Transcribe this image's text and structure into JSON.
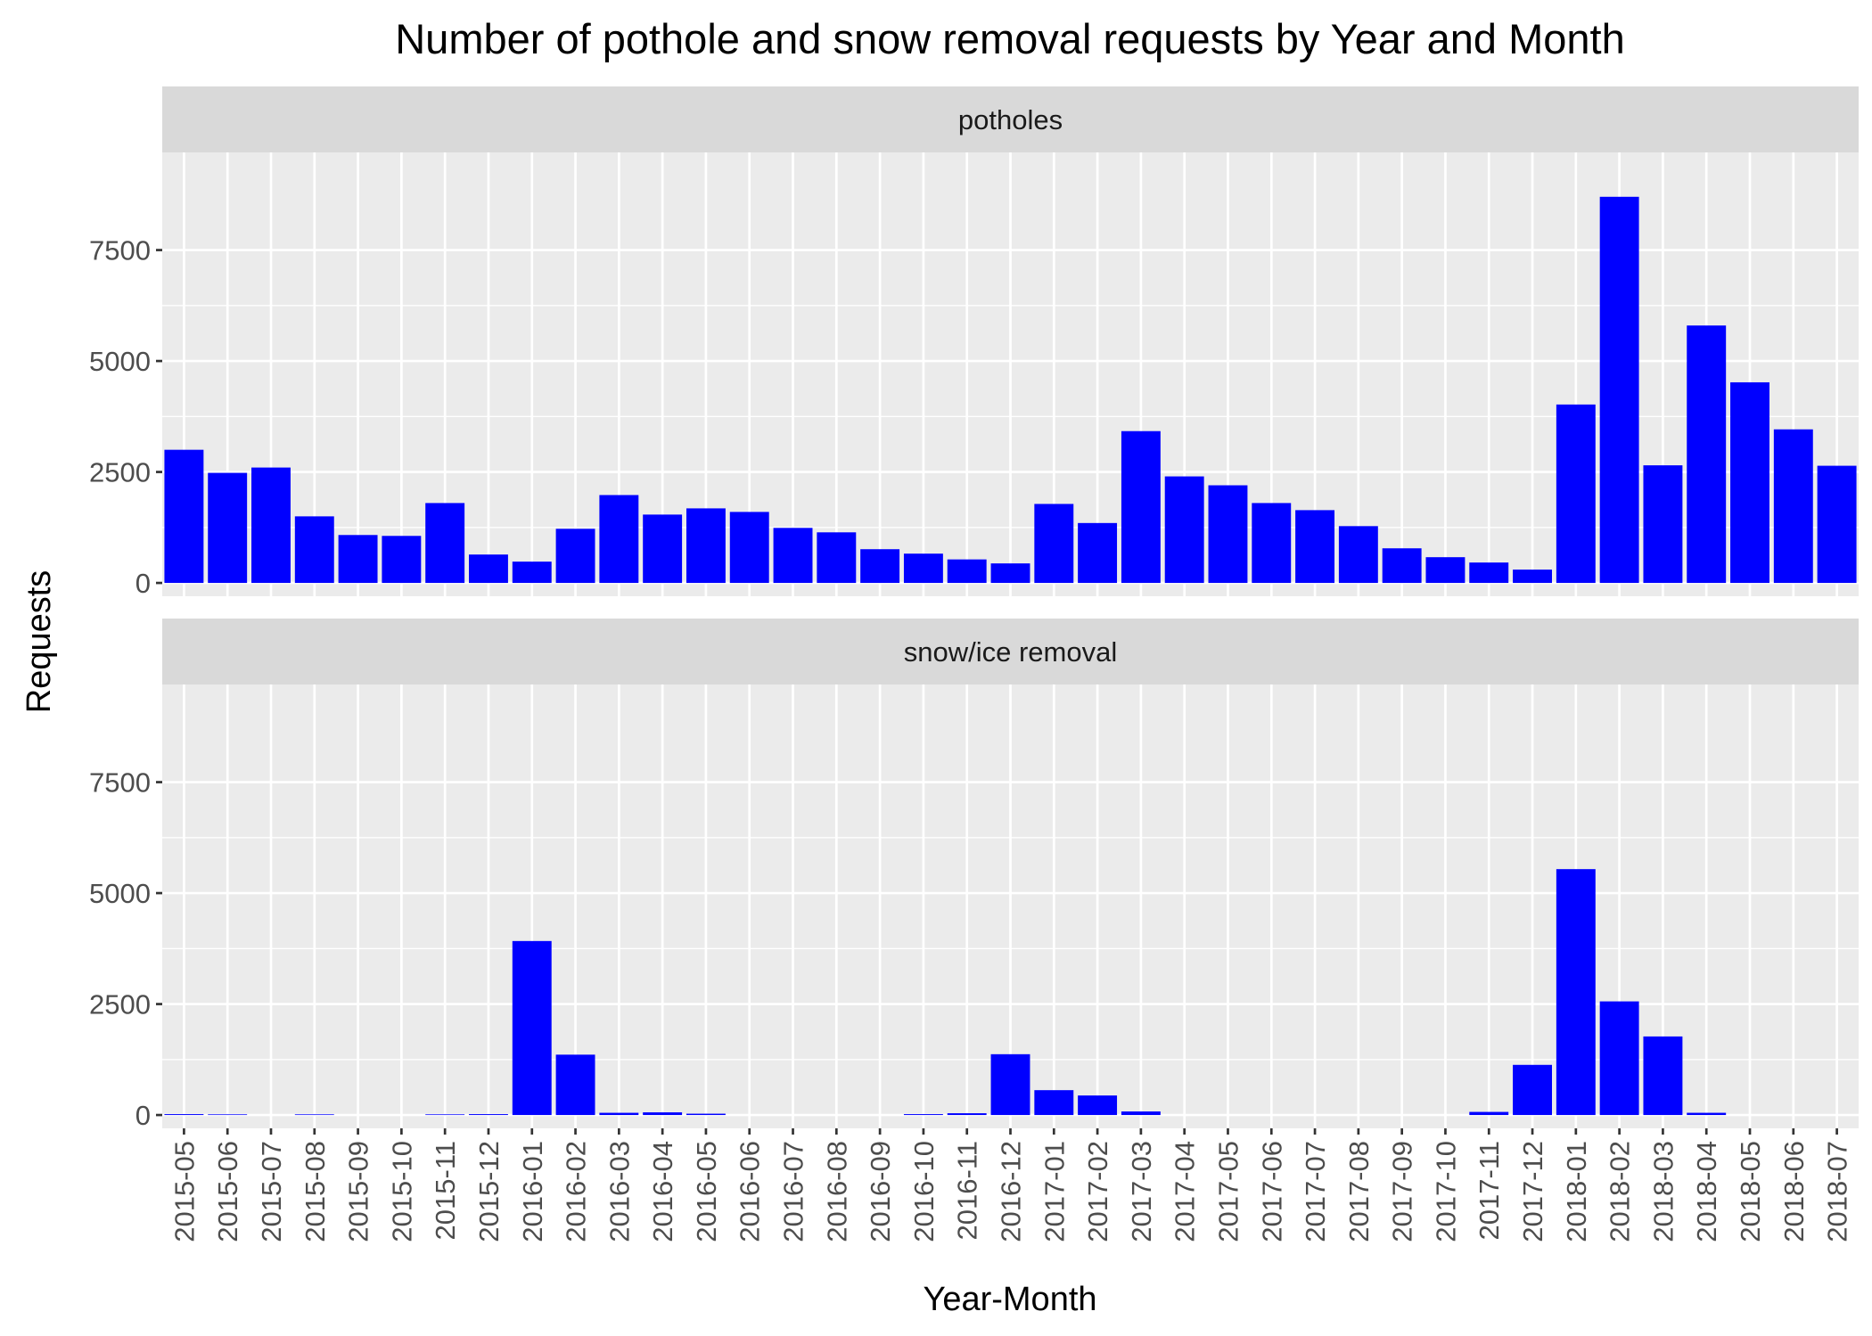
{
  "chart_data": {
    "type": "bar",
    "title": "Number of pothole and snow removal requests by Year and Month",
    "xlabel": "Year-Month",
    "ylabel": "Requests",
    "ylim": [
      -300,
      9700
    ],
    "yticks": [
      0,
      2500,
      5000,
      7500
    ],
    "yticks_labels": [
      "0",
      "2500",
      "5000",
      "7500"
    ],
    "grid": true,
    "legend": "none",
    "bar_color": "#0000ff",
    "panel_bg": "#ebebeb",
    "strip_bg": "#d9d9d9",
    "categories": [
      "2015-05",
      "2015-06",
      "2015-07",
      "2015-08",
      "2015-09",
      "2015-10",
      "2015-11",
      "2015-12",
      "2016-01",
      "2016-02",
      "2016-03",
      "2016-04",
      "2016-05",
      "2016-06",
      "2016-07",
      "2016-08",
      "2016-09",
      "2016-10",
      "2016-11",
      "2016-12",
      "2017-01",
      "2017-02",
      "2017-03",
      "2017-04",
      "2017-05",
      "2017-06",
      "2017-07",
      "2017-08",
      "2017-09",
      "2017-10",
      "2017-11",
      "2017-12",
      "2018-01",
      "2018-02",
      "2018-03",
      "2018-04",
      "2018-05",
      "2018-06",
      "2018-07"
    ],
    "panels": [
      {
        "name": "potholes",
        "values": [
          3000,
          2480,
          2600,
          1500,
          1080,
          1060,
          1800,
          640,
          480,
          1220,
          1980,
          1540,
          1680,
          1600,
          1240,
          1140,
          760,
          660,
          530,
          440,
          1780,
          1350,
          3420,
          2400,
          2200,
          1800,
          1640,
          1280,
          780,
          580,
          460,
          300,
          4020,
          8700,
          2650,
          5800,
          4520,
          3460,
          2640
        ]
      },
      {
        "name": "snow/ice removal",
        "values": [
          20,
          15,
          0,
          15,
          0,
          0,
          15,
          20,
          3920,
          1360,
          50,
          60,
          30,
          0,
          0,
          0,
          0,
          20,
          40,
          1370,
          560,
          440,
          80,
          0,
          0,
          0,
          0,
          0,
          0,
          0,
          70,
          1130,
          5540,
          2560,
          1770,
          50,
          0,
          0,
          0
        ]
      }
    ]
  }
}
